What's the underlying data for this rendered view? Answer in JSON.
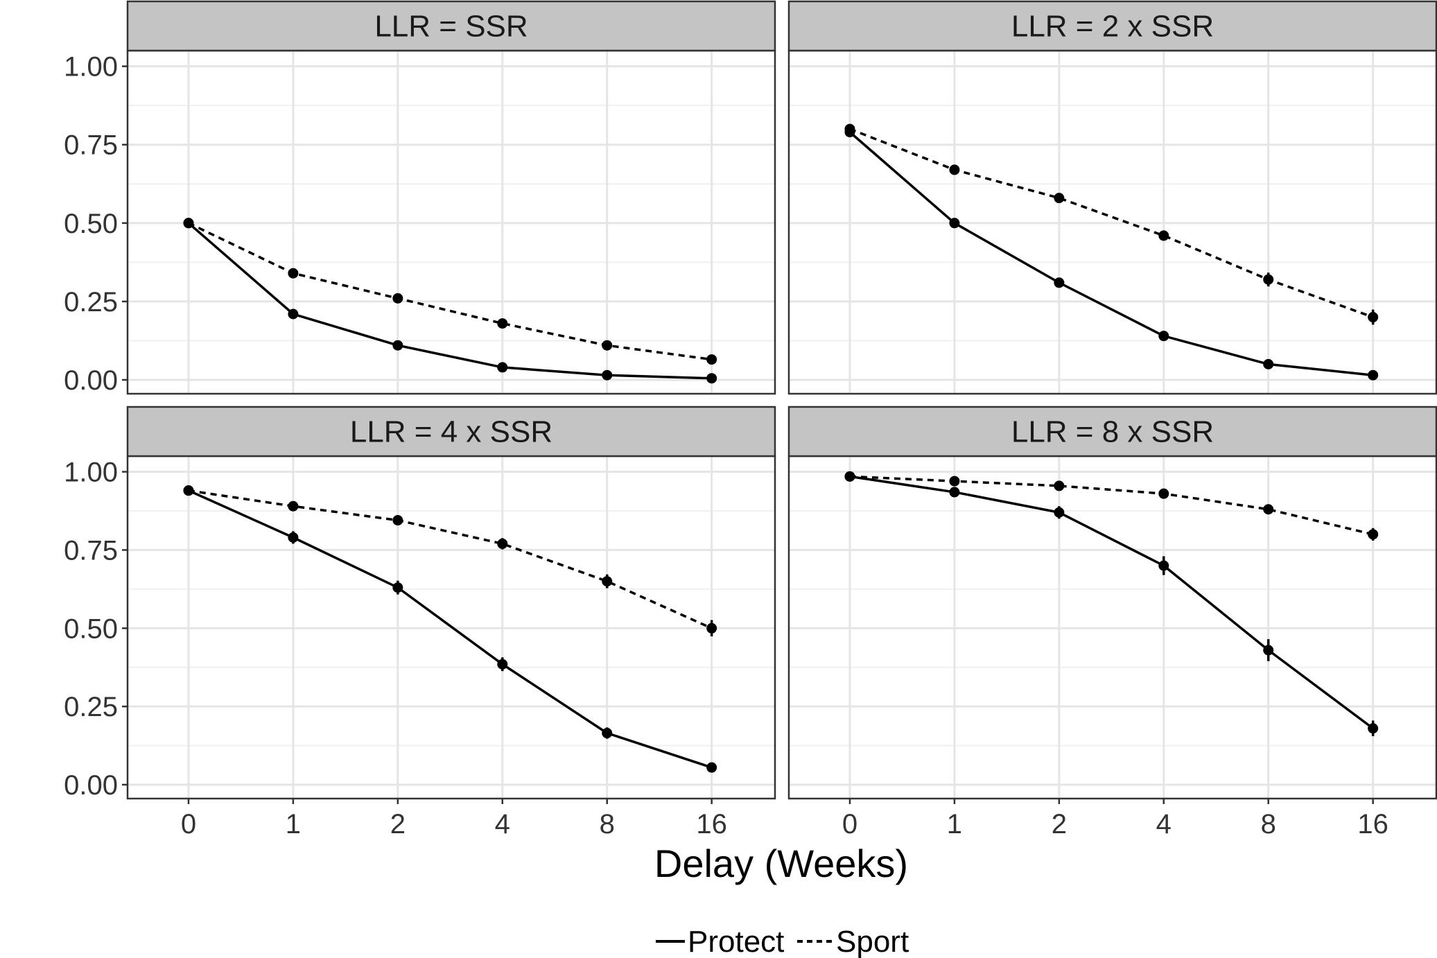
{
  "chart_data": {
    "type": "line",
    "xlabel": "Delay (Weeks)",
    "ylabel": "",
    "x_categories": [
      "0",
      "1",
      "2",
      "4",
      "8",
      "16"
    ],
    "ylim": [
      0,
      1.05
    ],
    "yticks": [
      0.0,
      0.25,
      0.5,
      0.75,
      1.0
    ],
    "ytick_labels": [
      "0.00",
      "0.25",
      "0.50",
      "0.75",
      "1.00"
    ],
    "grid": true,
    "legend": {
      "position": "bottom",
      "entries": [
        {
          "name": "Protect",
          "linestyle": "solid"
        },
        {
          "name": "Sport",
          "linestyle": "dashed"
        }
      ]
    },
    "colors": {
      "line": "#000000",
      "strip": "#c4c4c4",
      "grid": "#e5e5e5",
      "panel_border": "#333333"
    },
    "panels": [
      {
        "title": "LLR = SSR",
        "series": [
          {
            "name": "Protect",
            "values": [
              0.5,
              0.21,
              0.11,
              0.04,
              0.015,
              0.005
            ],
            "errors": [
              0.01,
              0.01,
              0.01,
              0.008,
              0.006,
              0.004
            ]
          },
          {
            "name": "Sport",
            "values": [
              0.5,
              0.34,
              0.26,
              0.18,
              0.11,
              0.065
            ],
            "errors": [
              0.01,
              0.012,
              0.012,
              0.014,
              0.012,
              0.012
            ]
          }
        ]
      },
      {
        "title": "LLR = 2 x SSR",
        "series": [
          {
            "name": "Protect",
            "values": [
              0.79,
              0.5,
              0.31,
              0.14,
              0.05,
              0.015
            ],
            "errors": [
              0.012,
              0.012,
              0.012,
              0.012,
              0.01,
              0.008
            ]
          },
          {
            "name": "Sport",
            "values": [
              0.8,
              0.67,
              0.58,
              0.46,
              0.32,
              0.2
            ],
            "errors": [
              0.012,
              0.012,
              0.014,
              0.016,
              0.022,
              0.024
            ]
          }
        ]
      },
      {
        "title": "LLR = 4 x SSR",
        "series": [
          {
            "name": "Protect",
            "values": [
              0.94,
              0.79,
              0.63,
              0.385,
              0.165,
              0.055
            ],
            "errors": [
              0.012,
              0.02,
              0.022,
              0.022,
              0.018,
              0.01
            ]
          },
          {
            "name": "Sport",
            "values": [
              0.94,
              0.89,
              0.845,
              0.77,
              0.65,
              0.5
            ],
            "errors": [
              0.01,
              0.012,
              0.014,
              0.018,
              0.022,
              0.026
            ]
          }
        ]
      },
      {
        "title": "LLR = 8 x SSR",
        "series": [
          {
            "name": "Protect",
            "values": [
              0.985,
              0.935,
              0.87,
              0.7,
              0.43,
              0.18
            ],
            "errors": [
              0.008,
              0.012,
              0.02,
              0.03,
              0.035,
              0.025
            ]
          },
          {
            "name": "Sport",
            "values": [
              0.985,
              0.97,
              0.955,
              0.93,
              0.88,
              0.8
            ],
            "errors": [
              0.006,
              0.008,
              0.01,
              0.012,
              0.016,
              0.02
            ]
          }
        ]
      }
    ]
  }
}
